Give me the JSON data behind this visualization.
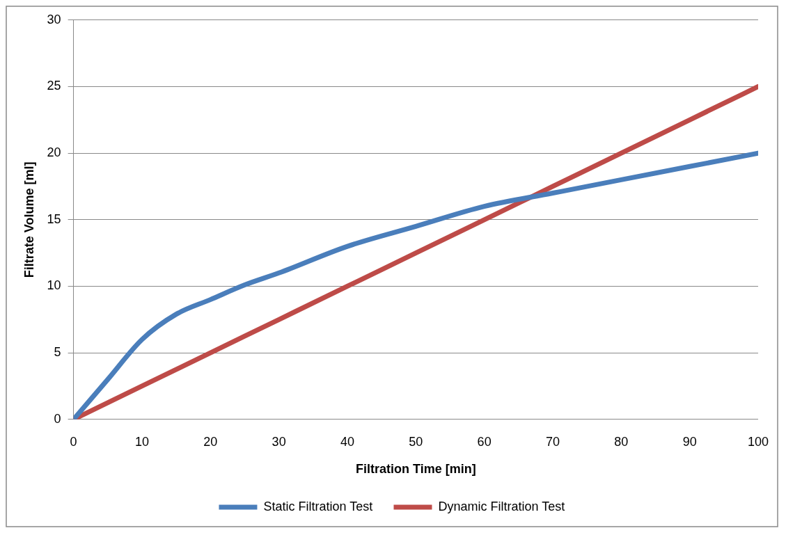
{
  "chart_data": {
    "type": "line",
    "xlabel": "Filtration Time [min]",
    "ylabel": "Filtrate Volume [ml]",
    "xlim": [
      0,
      100
    ],
    "xticks": [
      0,
      10,
      20,
      30,
      40,
      50,
      60,
      70,
      80,
      90,
      100
    ],
    "ylim": [
      0,
      30
    ],
    "yticks": [
      0,
      5,
      10,
      15,
      20,
      25,
      30
    ],
    "grid": "y",
    "legend": "bottom",
    "marker": "none",
    "line_style": "solid",
    "series": [
      {
        "name": "Static Filtration Test",
        "color": "#4a7ebb",
        "x": [
          0,
          5,
          10,
          15,
          20,
          25,
          30,
          40,
          50,
          60,
          70,
          80,
          90,
          100
        ],
        "values": [
          0,
          3,
          6,
          7.9,
          9,
          10.1,
          11,
          13,
          14.5,
          16,
          17,
          18,
          19,
          20
        ]
      },
      {
        "name": "Dynamic Filtration Test",
        "color": "#be4b48",
        "x": [
          0,
          10,
          20,
          30,
          40,
          50,
          60,
          70,
          80,
          90,
          100
        ],
        "values": [
          0,
          2.5,
          5,
          7.5,
          10,
          12.5,
          15,
          17.5,
          20,
          22.5,
          25
        ]
      }
    ]
  }
}
